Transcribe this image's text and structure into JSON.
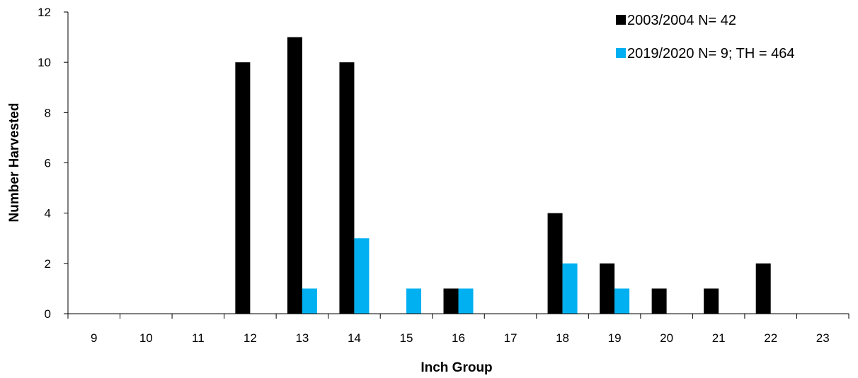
{
  "chart_data": {
    "type": "bar",
    "title": "",
    "xlabel": "Inch Group",
    "ylabel": "Number Harvested",
    "categories": [
      "9",
      "10",
      "11",
      "12",
      "13",
      "14",
      "15",
      "16",
      "17",
      "18",
      "19",
      "20",
      "21",
      "22",
      "23"
    ],
    "series": [
      {
        "name": "2003/2004 N= 42",
        "color": "#000000",
        "values": [
          0,
          0,
          0,
          10,
          11,
          10,
          0,
          1,
          0,
          4,
          2,
          1,
          1,
          2,
          0
        ]
      },
      {
        "name": "2019/2020 N= 9; TH = 464",
        "color": "#00b0f0",
        "values": [
          0,
          0,
          0,
          0,
          1,
          3,
          1,
          1,
          0,
          2,
          1,
          0,
          0,
          0,
          0
        ]
      }
    ],
    "ylim": [
      0,
      12
    ],
    "yticks": [
      0,
      2,
      4,
      6,
      8,
      10,
      12
    ],
    "grid": false,
    "legend_position": "top-right"
  }
}
